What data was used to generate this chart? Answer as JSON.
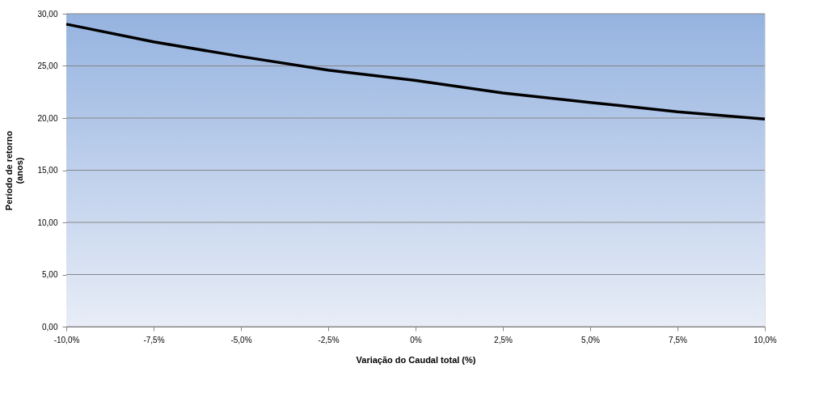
{
  "chart_data": {
    "type": "line",
    "xlabel": "Variação do Caudal total (%)",
    "ylabel": "Período de retorno\n(anos)",
    "categories": [
      "-10,0%",
      "-7,5%",
      "-5,0%",
      "-2,5%",
      "0%",
      "2,5%",
      "5,0%",
      "7,5%",
      "10,0%"
    ],
    "series": [
      {
        "color": "#000000",
        "values": [
          29.0,
          27.3,
          25.9,
          24.6,
          23.6,
          22.4,
          21.5,
          20.6,
          19.9
        ]
      }
    ],
    "ylim": [
      0,
      30
    ],
    "yticks": [
      {
        "value": 0,
        "label": "0,00"
      },
      {
        "value": 5,
        "label": "5,00"
      },
      {
        "value": 10,
        "label": "10,00"
      },
      {
        "value": 15,
        "label": "15,00"
      },
      {
        "value": 20,
        "label": "20,00"
      },
      {
        "value": 25,
        "label": "25,00"
      },
      {
        "value": 30,
        "label": "30,00"
      }
    ],
    "grid": "y",
    "legend": false,
    "marker": "none",
    "line_style": "solid"
  }
}
